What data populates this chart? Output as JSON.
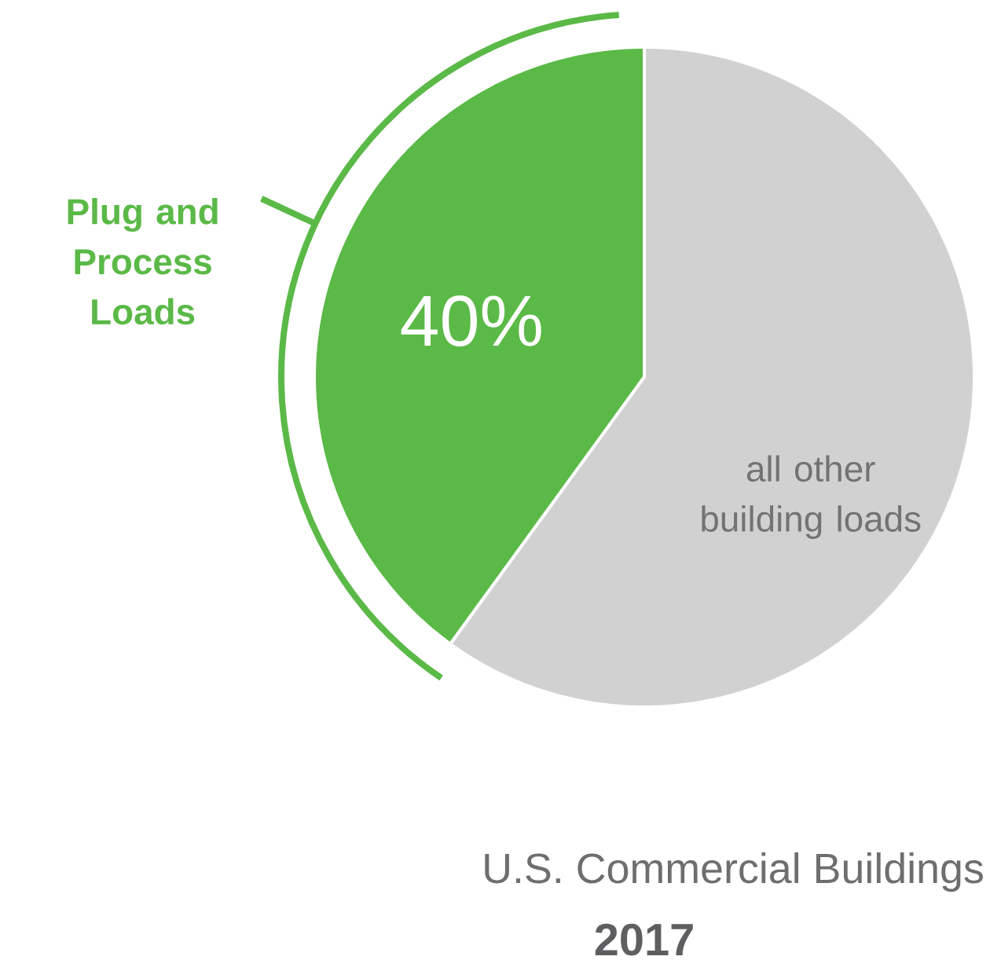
{
  "chart_data": {
    "type": "pie",
    "title": "U.S. Commercial Buildings",
    "subtitle": "2017",
    "categories": [
      "Plug and Process Loads",
      "all other building loads"
    ],
    "values": [
      40,
      60
    ],
    "colors": [
      "#5bb947",
      "#d1d1d2"
    ],
    "value_labels": [
      "40%",
      null
    ]
  }
}
